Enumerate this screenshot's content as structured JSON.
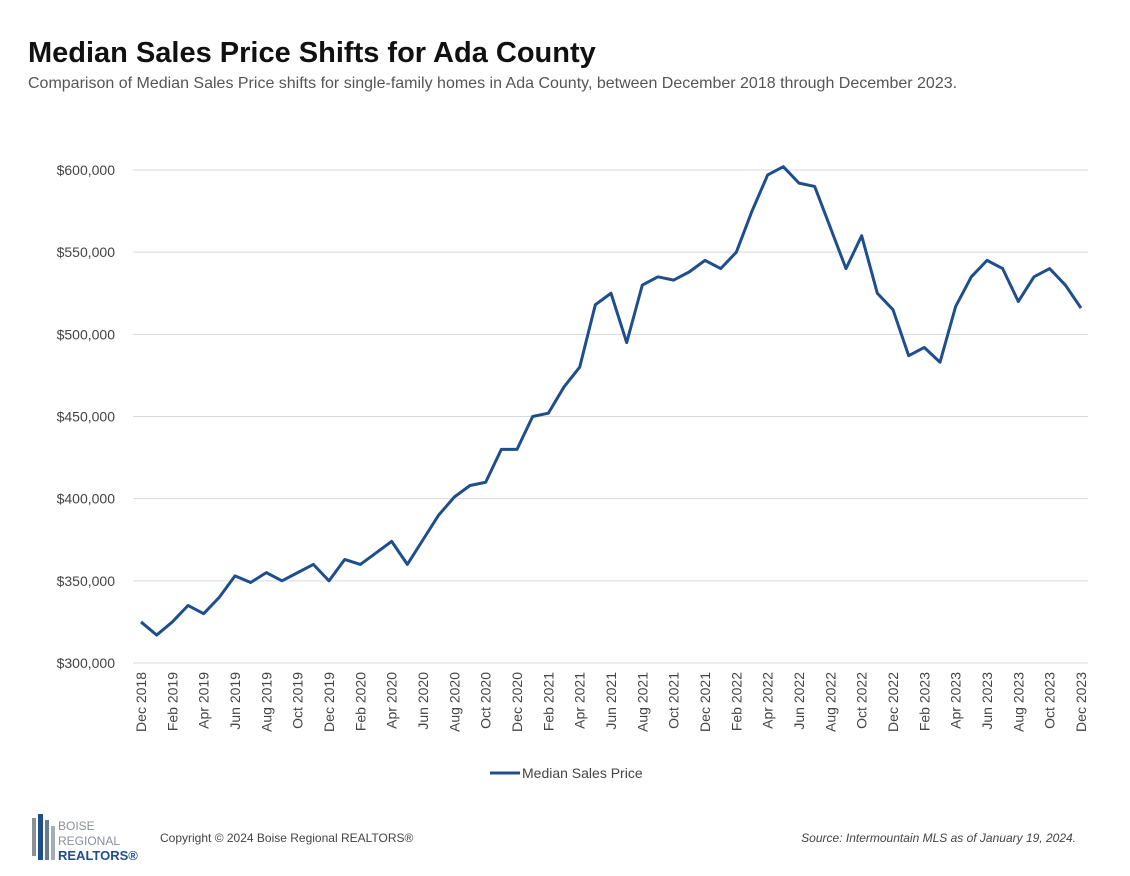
{
  "chart_data": {
    "type": "line",
    "title": "Median Sales Price Shifts for Ada County",
    "subtitle": "Comparison of Median Sales Price shifts for single-family homes in Ada County, between December 2018 through December 2023.",
    "categories": [
      "Dec 2018",
      null,
      "Feb 2019",
      null,
      "Apr 2019",
      null,
      "Jun 2019",
      null,
      "Aug 2019",
      null,
      "Oct 2019",
      null,
      "Dec 2019",
      null,
      "Feb 2020",
      null,
      "Apr 2020",
      null,
      "Jun 2020",
      null,
      "Aug 2020",
      null,
      "Oct 2020",
      null,
      "Dec 2020",
      null,
      "Feb 2021",
      null,
      "Apr 2021",
      null,
      "Jun 2021",
      null,
      "Aug 2021",
      null,
      "Oct 2021",
      null,
      "Dec 2021",
      null,
      "Feb 2022",
      null,
      "Apr 2022",
      null,
      "Jun 2022",
      null,
      "Aug 2022",
      null,
      "Oct 2022",
      null,
      "Dec 2022",
      null,
      "Feb 2023",
      null,
      "Apr 2023",
      null,
      "Jun 2023",
      null,
      "Aug 2023",
      null,
      "Oct 2023",
      null,
      "Dec 2023"
    ],
    "series": [
      {
        "name": "Median Sales Price",
        "color": "#1f4e8c",
        "values": [
          325000,
          317000,
          325000,
          335000,
          330000,
          340000,
          353000,
          349000,
          355000,
          350000,
          355000,
          360000,
          350000,
          363000,
          360000,
          367000,
          374000,
          360000,
          375000,
          390000,
          401000,
          408000,
          410000,
          430000,
          430000,
          450000,
          452000,
          468000,
          480000,
          518000,
          525000,
          495000,
          530000,
          535000,
          533000,
          538000,
          545000,
          540000,
          550000,
          575000,
          597000,
          602000,
          592000,
          590000,
          565000,
          540000,
          560000,
          525000,
          515000,
          487000,
          492000,
          483000,
          517000,
          535000,
          545000,
          540000,
          520000,
          535000,
          540000,
          530000,
          516000
        ]
      }
    ],
    "ylim": [
      300000,
      600000
    ],
    "yticks": [
      {
        "value": 300000,
        "label": "$300,000"
      },
      {
        "value": 350000,
        "label": "$350,000"
      },
      {
        "value": 400000,
        "label": "$400,000"
      },
      {
        "value": 450000,
        "label": "$450,000"
      },
      {
        "value": 500000,
        "label": "$500,000"
      },
      {
        "value": 550000,
        "label": "$550,000"
      },
      {
        "value": 600000,
        "label": "$600,000"
      }
    ],
    "grid": true,
    "legend": "bottom"
  },
  "footer": {
    "logo": [
      "BOISE",
      "REGIONAL",
      "REALTORS®"
    ],
    "copyright": "Copyright © 2024 Boise Regional REALTORS®",
    "source": "Source: Intermountain MLS as of January 19, 2024."
  }
}
